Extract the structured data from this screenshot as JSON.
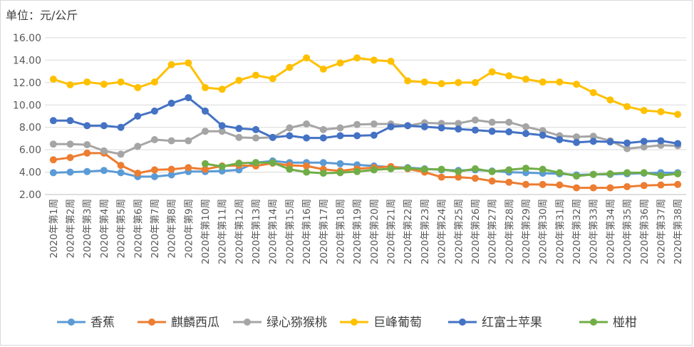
{
  "unit_label": "单位：元/公斤",
  "chart_data": {
    "type": "line",
    "title": "",
    "ylabel": "单位：元/公斤",
    "xlabel": "",
    "ylim": [
      2,
      16
    ],
    "yticks": [
      "2.00",
      "4.00",
      "6.00",
      "8.00",
      "10.00",
      "12.00",
      "14.00",
      "16.00"
    ],
    "grid": true,
    "legend_position": "bottom",
    "categories": [
      "2020年第1周",
      "2020年第2周",
      "2020年第3周",
      "2020年第4周",
      "2020年第5周",
      "2020年第6周",
      "2020年第7周",
      "2020年第8周",
      "2020年第9周",
      "2020年第10周",
      "2020年第11周",
      "2020年第12周",
      "2020年第13周",
      "2020年第14周",
      "2020年第15周",
      "2020年第16周",
      "2020年第17周",
      "2020年第18周",
      "2020年第19周",
      "2020年第20周",
      "2020年第21周",
      "2020年第22周",
      "2020年第23周",
      "2020年第24周",
      "2020年第25周",
      "2020年第26周",
      "2020年第27周",
      "2020年第28周",
      "2020年第29周",
      "2020年第30周",
      "2020年第31周",
      "2020年第32周",
      "2020年第33周",
      "2020年第34周",
      "2020年第35周",
      "2020年第36周",
      "2020年第37周",
      "2020年第38周"
    ],
    "series": [
      {
        "name": "香蕉",
        "color": "#5b9bd5",
        "values": [
          3.95,
          4.0,
          4.05,
          4.15,
          3.95,
          3.6,
          3.6,
          3.75,
          4.05,
          4.05,
          4.1,
          4.2,
          4.85,
          5.0,
          4.85,
          4.85,
          4.85,
          4.75,
          4.65,
          4.55,
          4.45,
          4.4,
          4.3,
          4.2,
          4.15,
          4.2,
          4.1,
          4.0,
          3.95,
          3.9,
          3.85,
          3.75,
          3.8,
          3.8,
          3.85,
          3.9,
          3.95,
          3.95
        ]
      },
      {
        "name": "麒麟西瓜",
        "color": "#ed7d31",
        "values": [
          5.1,
          5.3,
          5.7,
          5.7,
          4.6,
          3.9,
          4.2,
          4.25,
          4.4,
          4.25,
          4.55,
          4.6,
          4.55,
          4.8,
          4.6,
          4.55,
          4.25,
          4.1,
          4.3,
          4.4,
          4.5,
          4.3,
          4.0,
          3.55,
          3.55,
          3.45,
          3.2,
          3.1,
          2.9,
          2.9,
          2.85,
          2.6,
          2.6,
          2.6,
          2.7,
          2.8,
          2.85,
          2.9
        ]
      },
      {
        "name": "绿心猕猴桃",
        "color": "#a5a5a5",
        "values": [
          6.5,
          6.5,
          6.45,
          5.9,
          5.6,
          6.3,
          6.9,
          6.8,
          6.8,
          7.65,
          7.65,
          7.1,
          7.05,
          7.1,
          7.95,
          8.3,
          7.8,
          7.95,
          8.25,
          8.3,
          8.3,
          8.15,
          8.4,
          8.35,
          8.35,
          8.65,
          8.45,
          8.45,
          8.05,
          7.7,
          7.25,
          7.15,
          7.2,
          6.8,
          6.1,
          6.25,
          6.4,
          6.35
        ]
      },
      {
        "name": "巨峰葡萄",
        "color": "#ffc000",
        "values": [
          12.3,
          11.8,
          12.05,
          11.85,
          12.05,
          11.55,
          12.05,
          13.6,
          13.75,
          11.55,
          11.4,
          12.2,
          12.65,
          12.35,
          13.35,
          14.2,
          13.2,
          13.75,
          14.2,
          14.0,
          13.9,
          12.15,
          12.05,
          11.9,
          12.0,
          12.0,
          12.95,
          12.6,
          12.3,
          12.05,
          12.05,
          11.85,
          11.1,
          10.45,
          9.85,
          9.5,
          9.4,
          9.15
        ]
      },
      {
        "name": "红富士苹果",
        "color": "#4472c4",
        "values": [
          8.6,
          8.6,
          8.15,
          8.15,
          8.0,
          9.0,
          9.45,
          10.15,
          10.65,
          9.45,
          8.15,
          7.9,
          7.8,
          7.1,
          7.25,
          7.05,
          7.05,
          7.25,
          7.25,
          7.3,
          8.05,
          8.15,
          8.05,
          7.95,
          7.85,
          7.75,
          7.65,
          7.6,
          7.45,
          7.3,
          6.9,
          6.65,
          6.75,
          6.7,
          6.6,
          6.75,
          6.8,
          6.55
        ]
      },
      {
        "name": "椪柑",
        "color": "#70ad47",
        "values": [
          null,
          null,
          null,
          null,
          null,
          null,
          null,
          null,
          null,
          4.75,
          4.5,
          4.8,
          4.85,
          4.85,
          4.25,
          4.0,
          3.9,
          3.95,
          4.05,
          4.2,
          4.3,
          4.35,
          4.25,
          4.25,
          4.05,
          4.3,
          4.05,
          4.2,
          4.35,
          4.25,
          3.95,
          3.65,
          3.8,
          3.85,
          3.95,
          3.95,
          3.7,
          3.85
        ]
      }
    ]
  }
}
